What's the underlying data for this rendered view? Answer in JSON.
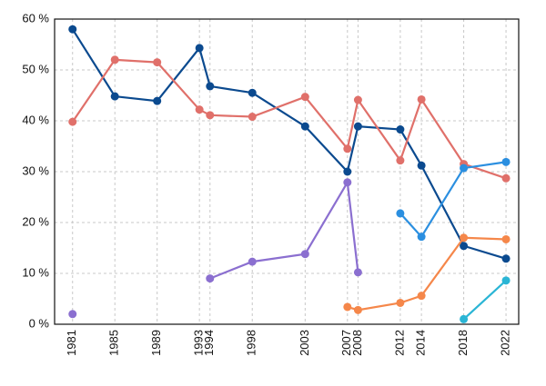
{
  "chart_data": {
    "type": "line",
    "x": [
      1981,
      1985,
      1989,
      1993,
      1994,
      1998,
      2003,
      2007,
      2008,
      2012,
      2014,
      2018,
      2022
    ],
    "series": [
      {
        "color": "#0b4a8f",
        "values": [
          58,
          44.8,
          43.9,
          54.3,
          46.8,
          45.5,
          38.9,
          30,
          38.9,
          38.3,
          31.2,
          15.4,
          12.9
        ]
      },
      {
        "color": "#e0706a",
        "values": [
          39.8,
          52,
          51.5,
          42.2,
          41.1,
          40.8,
          44.7,
          34.5,
          44.1,
          32.2,
          44.2,
          31.5,
          28.7
        ]
      },
      {
        "color": "#8b6fd0",
        "values": [
          2.0,
          null,
          null,
          null,
          9.0,
          12.3,
          13.8,
          27.9,
          10.2,
          null,
          null,
          null,
          null
        ]
      },
      {
        "color": "#2b8fe0",
        "values": [
          null,
          null,
          null,
          null,
          null,
          null,
          null,
          null,
          null,
          21.8,
          17.2,
          30.7,
          31.9
        ]
      },
      {
        "color": "#f5874a",
        "values": [
          null,
          null,
          null,
          null,
          null,
          null,
          null,
          3.4,
          2.8,
          4.2,
          5.6,
          17.0,
          16.7
        ]
      },
      {
        "color": "#2ab5d5",
        "values": [
          null,
          null,
          null,
          null,
          null,
          null,
          null,
          null,
          null,
          null,
          null,
          1.0,
          8.6
        ]
      }
    ],
    "xlim": [
      1979.3,
      2023.2
    ],
    "xticks": [
      1981,
      1985,
      1989,
      1993,
      1994,
      1998,
      2003,
      2007,
      2008,
      2012,
      2014,
      2018,
      2022
    ],
    "ylim": [
      0,
      60
    ],
    "yticks": [
      {
        "value": 0,
        "label": "0 %"
      },
      {
        "value": 10,
        "label": "10 %"
      },
      {
        "value": 20,
        "label": "20 %"
      },
      {
        "value": 30,
        "label": "30 %"
      },
      {
        "value": 40,
        "label": "40 %"
      },
      {
        "value": 50,
        "label": "50 %"
      },
      {
        "value": 60,
        "label": "60 %"
      }
    ],
    "grid": true
  }
}
